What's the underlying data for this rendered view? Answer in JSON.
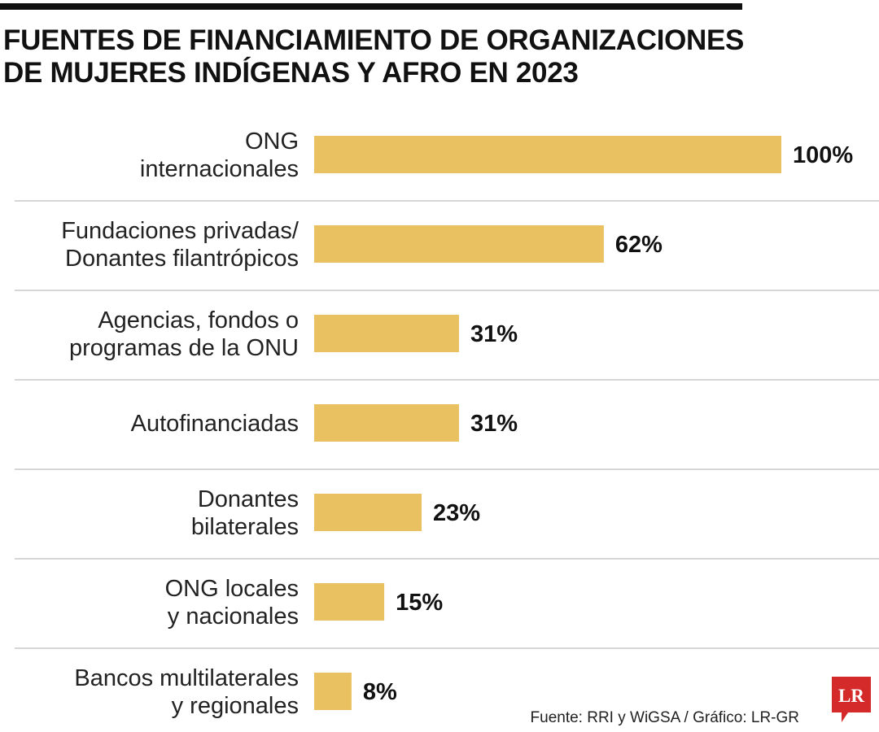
{
  "title_lines": [
    "FUENTES DE FINANCIAMIENTO DE ORGANIZACIONES",
    "DE MUJERES INDÍGENAS Y AFRO EN 2023"
  ],
  "source": "Fuente: RRI y WiGSA / Gráfico: LR-GR",
  "logo": "LR",
  "colors": {
    "bar": "#e9c161",
    "divider": "#c8c8c8",
    "logo": "#d42a2a",
    "text": "#111111"
  },
  "chart_data": {
    "type": "bar",
    "orientation": "horizontal",
    "title": "FUENTES DE FINANCIAMIENTO DE ORGANIZACIONES DE MUJERES INDÍGENAS Y AFRO EN 2023",
    "categories": [
      [
        "ONG",
        "internacionales"
      ],
      [
        "Fundaciones privadas/",
        "Donantes filantrópicos"
      ],
      [
        "Agencias, fondos o",
        "programas de la ONU"
      ],
      [
        "Autofinanciadas"
      ],
      [
        "Donantes",
        "bilaterales"
      ],
      [
        "ONG locales",
        "y nacionales"
      ],
      [
        "Bancos multilaterales",
        "y regionales"
      ]
    ],
    "values": [
      100,
      62,
      31,
      31,
      23,
      15,
      8
    ],
    "value_labels": [
      "100%",
      "62%",
      "31%",
      "31%",
      "23%",
      "15%",
      "8%"
    ],
    "unit": "%",
    "xlim": [
      0,
      100
    ],
    "grid": false,
    "legend": "none"
  }
}
